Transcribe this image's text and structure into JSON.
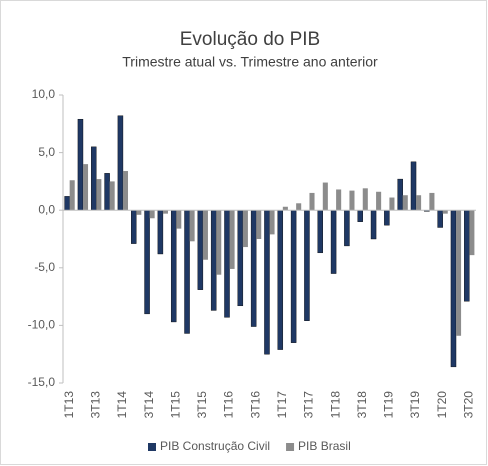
{
  "chart_data": {
    "type": "bar",
    "title": "Evolução do PIB",
    "subtitle": "Trimestre atual vs. Trimestre ano anterior",
    "categories": [
      "1T13",
      null,
      "3T13",
      null,
      "1T14",
      null,
      "3T14",
      null,
      "1T15",
      null,
      "3T15",
      null,
      "1T16",
      null,
      "3T16",
      null,
      "1T17",
      null,
      "3T17",
      null,
      "1T18",
      null,
      "3T18",
      null,
      "1T19",
      null,
      "3T19",
      null,
      "1T20",
      null,
      "3T20"
    ],
    "series": [
      {
        "name": "PIB Construção Civil",
        "color": "#1f3864",
        "values": [
          1.2,
          7.9,
          5.5,
          3.2,
          8.2,
          -2.9,
          -9.0,
          -3.8,
          -9.7,
          -10.7,
          -6.9,
          -8.7,
          -9.3,
          -8.3,
          -10.1,
          -12.5,
          -12.1,
          -11.5,
          -9.6,
          -3.7,
          -5.5,
          -3.1,
          -1.0,
          -2.5,
          -1.3,
          2.7,
          4.2,
          -0.1,
          -1.5,
          -13.6,
          -7.9
        ]
      },
      {
        "name": "PIB Brasil",
        "color": "#8c8c8c",
        "values": [
          2.6,
          4.0,
          2.7,
          2.5,
          3.4,
          -0.4,
          -0.7,
          -0.3,
          -1.6,
          -2.7,
          -4.3,
          -5.6,
          -5.1,
          -3.2,
          -2.5,
          -2.1,
          0.3,
          0.6,
          1.5,
          2.4,
          1.8,
          1.7,
          1.9,
          1.6,
          1.1,
          1.3,
          1.3,
          1.5,
          -0.3,
          -10.9,
          -3.9
        ]
      }
    ],
    "ylim": [
      -15,
      10
    ],
    "yticks": [
      {
        "value": -15,
        "label": "-15,0"
      },
      {
        "value": -10,
        "label": "-10,0"
      },
      {
        "value": -5,
        "label": "-5,0"
      },
      {
        "value": 0,
        "label": "0,0"
      },
      {
        "value": 5,
        "label": "5,0"
      },
      {
        "value": 10,
        "label": "10,0"
      }
    ],
    "legend": "bottom"
  }
}
